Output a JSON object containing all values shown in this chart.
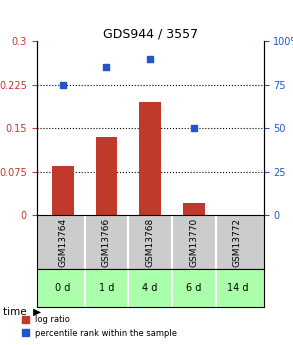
{
  "title": "GDS944 / 3557",
  "categories": [
    "GSM13764",
    "GSM13766",
    "GSM13768",
    "GSM13770",
    "GSM13772"
  ],
  "time_labels": [
    "0 d",
    "1 d",
    "4 d",
    "6 d",
    "14 d"
  ],
  "log_ratio": [
    0.085,
    0.135,
    0.195,
    0.02,
    0.0
  ],
  "percentile_rank": [
    75,
    85,
    90,
    50,
    null
  ],
  "ylim_left": [
    0,
    0.3
  ],
  "ylim_right": [
    0,
    100
  ],
  "yticks_left": [
    0,
    0.075,
    0.15,
    0.225,
    0.3
  ],
  "ytick_labels_left": [
    "0",
    "0.075",
    "0.15",
    "0.225",
    "0.3"
  ],
  "yticks_right": [
    0,
    25,
    50,
    75,
    100
  ],
  "ytick_labels_right": [
    "0",
    "25",
    "50",
    "75",
    "100%"
  ],
  "bar_color": "#c0392b",
  "dot_color": "#2255cc",
  "grid_color": "#000000",
  "bg_color_gsm": "#cccccc",
  "bg_color_time": "#aaffaa",
  "legend_log_ratio": "log ratio",
  "legend_percentile": "percentile rank within the sample"
}
